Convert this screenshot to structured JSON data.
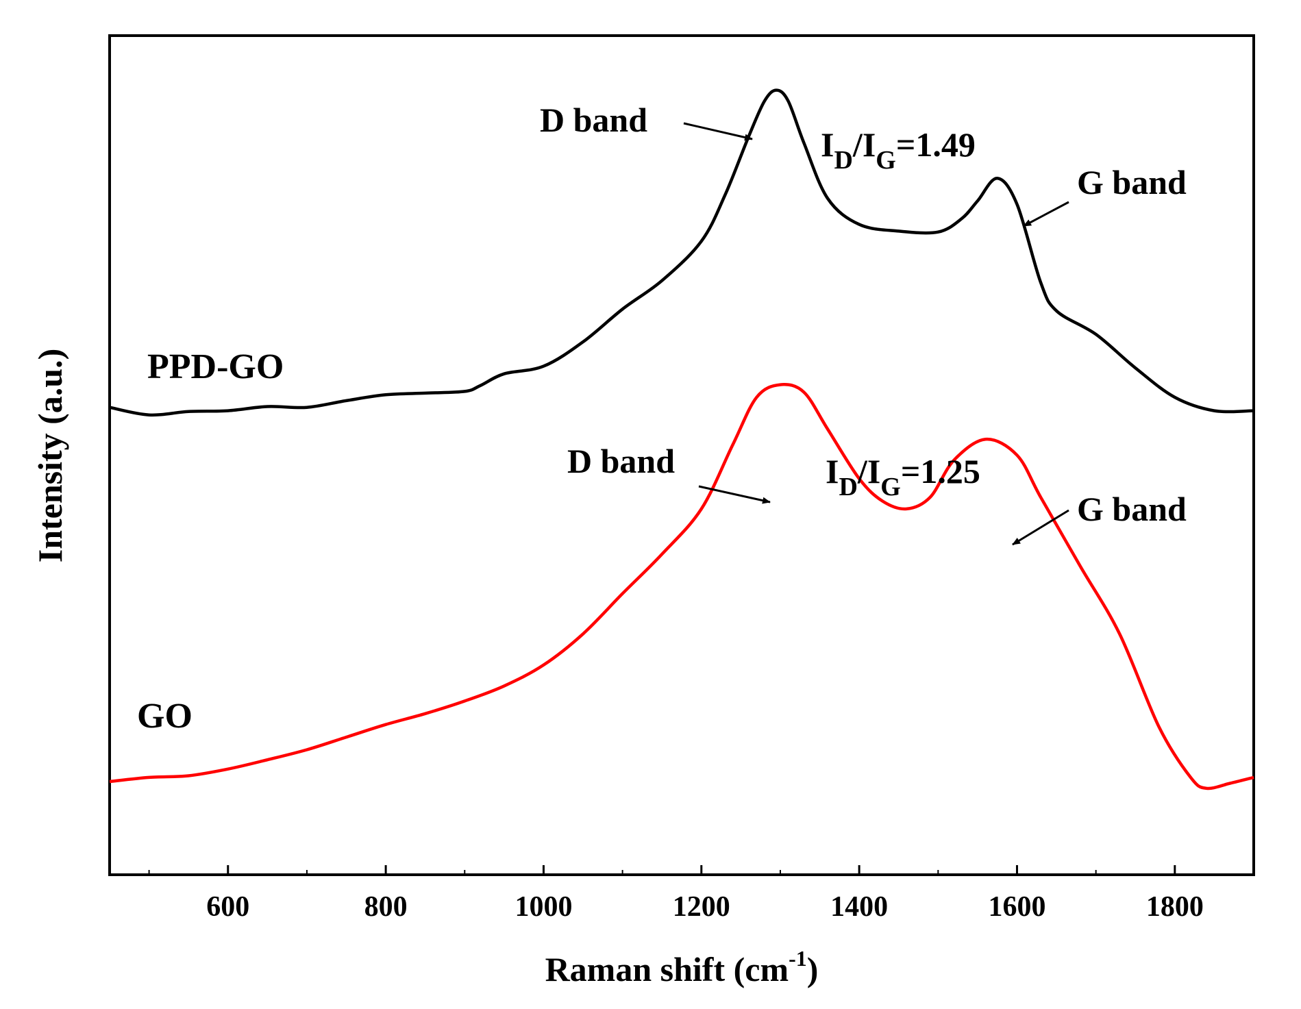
{
  "chart_data": {
    "type": "line",
    "title": "",
    "xlabel": "Raman shift (cm",
    "xlabel_sup": "-1",
    "xlabel_close": ")",
    "ylabel": "Intensity (a.u.)",
    "xlim": [
      450,
      1900
    ],
    "ylim": [
      0,
      100
    ],
    "x_ticks": [
      600,
      800,
      1000,
      1200,
      1400,
      1600,
      1800
    ],
    "x_tick_labels": [
      "600",
      "800",
      "1000",
      "1200",
      "1400",
      "1600",
      "1800"
    ],
    "grid": false,
    "series": [
      {
        "name": "PPD-GO",
        "color": "#000000",
        "x": [
          450,
          500,
          550,
          600,
          650,
          700,
          750,
          800,
          850,
          900,
          920,
          950,
          1000,
          1050,
          1100,
          1150,
          1200,
          1230,
          1260,
          1280,
          1295,
          1310,
          1330,
          1360,
          1400,
          1450,
          1500,
          1530,
          1550,
          1575,
          1600,
          1630,
          1650,
          1700,
          1750,
          1800,
          1850,
          1900
        ],
        "y": [
          55.7,
          54.8,
          55.2,
          55.3,
          55.8,
          55.7,
          56.5,
          57.2,
          57.4,
          57.6,
          58.3,
          59.7,
          60.6,
          63.5,
          67.4,
          70.8,
          75.5,
          81.0,
          88.0,
          92.2,
          93.5,
          92.2,
          87.2,
          80.6,
          77.5,
          76.7,
          76.6,
          78.2,
          80.3,
          83.0,
          79.9,
          70.6,
          67.2,
          64.4,
          60.4,
          56.9,
          55.3,
          55.3
        ]
      },
      {
        "name": "GO",
        "color": "#ff0000",
        "x": [
          450,
          500,
          550,
          600,
          650,
          700,
          750,
          800,
          850,
          900,
          950,
          1000,
          1050,
          1100,
          1150,
          1200,
          1240,
          1270,
          1300,
          1330,
          1360,
          1400,
          1430,
          1460,
          1490,
          1520,
          1560,
          1600,
          1630,
          1680,
          1730,
          1780,
          1820,
          1840,
          1870,
          1900
        ],
        "y": [
          11.1,
          11.6,
          11.8,
          12.6,
          13.7,
          14.9,
          16.4,
          17.9,
          19.2,
          20.7,
          22.5,
          25.0,
          28.7,
          33.5,
          38.2,
          43.6,
          51.3,
          56.9,
          58.4,
          57.5,
          53.1,
          47.2,
          44.5,
          43.6,
          45.0,
          49.4,
          51.9,
          50.0,
          45.0,
          36.8,
          28.7,
          17.6,
          11.6,
          10.3,
          10.9,
          11.6
        ]
      }
    ],
    "annotations": [
      {
        "text": "D band",
        "series": "PPD-GO"
      },
      {
        "text_main": "I",
        "sub1": "D",
        "slash": "/I",
        "sub2": "G",
        "value": "=1.49",
        "series": "PPD-GO"
      },
      {
        "text": "G band",
        "series": "PPD-GO"
      },
      {
        "text": "D band",
        "series": "GO"
      },
      {
        "text_main": "I",
        "sub1": "D",
        "slash": "/I",
        "sub2": "G",
        "value": "=1.25",
        "series": "GO"
      },
      {
        "text": "G band",
        "series": "GO"
      }
    ],
    "series_labels": [
      "PPD-GO",
      "GO"
    ]
  }
}
